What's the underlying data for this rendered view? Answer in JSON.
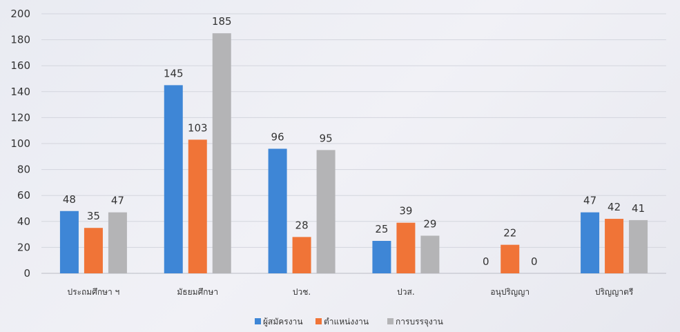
{
  "chart_data": {
    "type": "bar",
    "categories": [
      "ประถมศึกษา ฯ",
      "มัธยมศึกษา",
      "ปวช.",
      "ปวส.",
      "อนุปริญญา",
      "ปริญญาตรี"
    ],
    "series": [
      {
        "name": "ผู้สมัครงาน",
        "values": [
          48,
          145,
          96,
          25,
          0,
          47
        ],
        "color": "#3e86d6"
      },
      {
        "name": "ตำแหน่งงาน",
        "values": [
          35,
          103,
          28,
          39,
          22,
          42
        ],
        "color": "#f07437"
      },
      {
        "name": "การบรรจุงาน",
        "values": [
          47,
          185,
          95,
          29,
          0,
          41
        ],
        "color": "#b4b4b6"
      }
    ],
    "y_ticks": [
      "0",
      "20",
      "40",
      "60",
      "80",
      "100",
      "120",
      "140",
      "160",
      "180",
      "200"
    ],
    "ylim": [
      0,
      200
    ],
    "grid": true,
    "legend": "bottom",
    "title": "",
    "xlabel": "",
    "ylabel": ""
  }
}
